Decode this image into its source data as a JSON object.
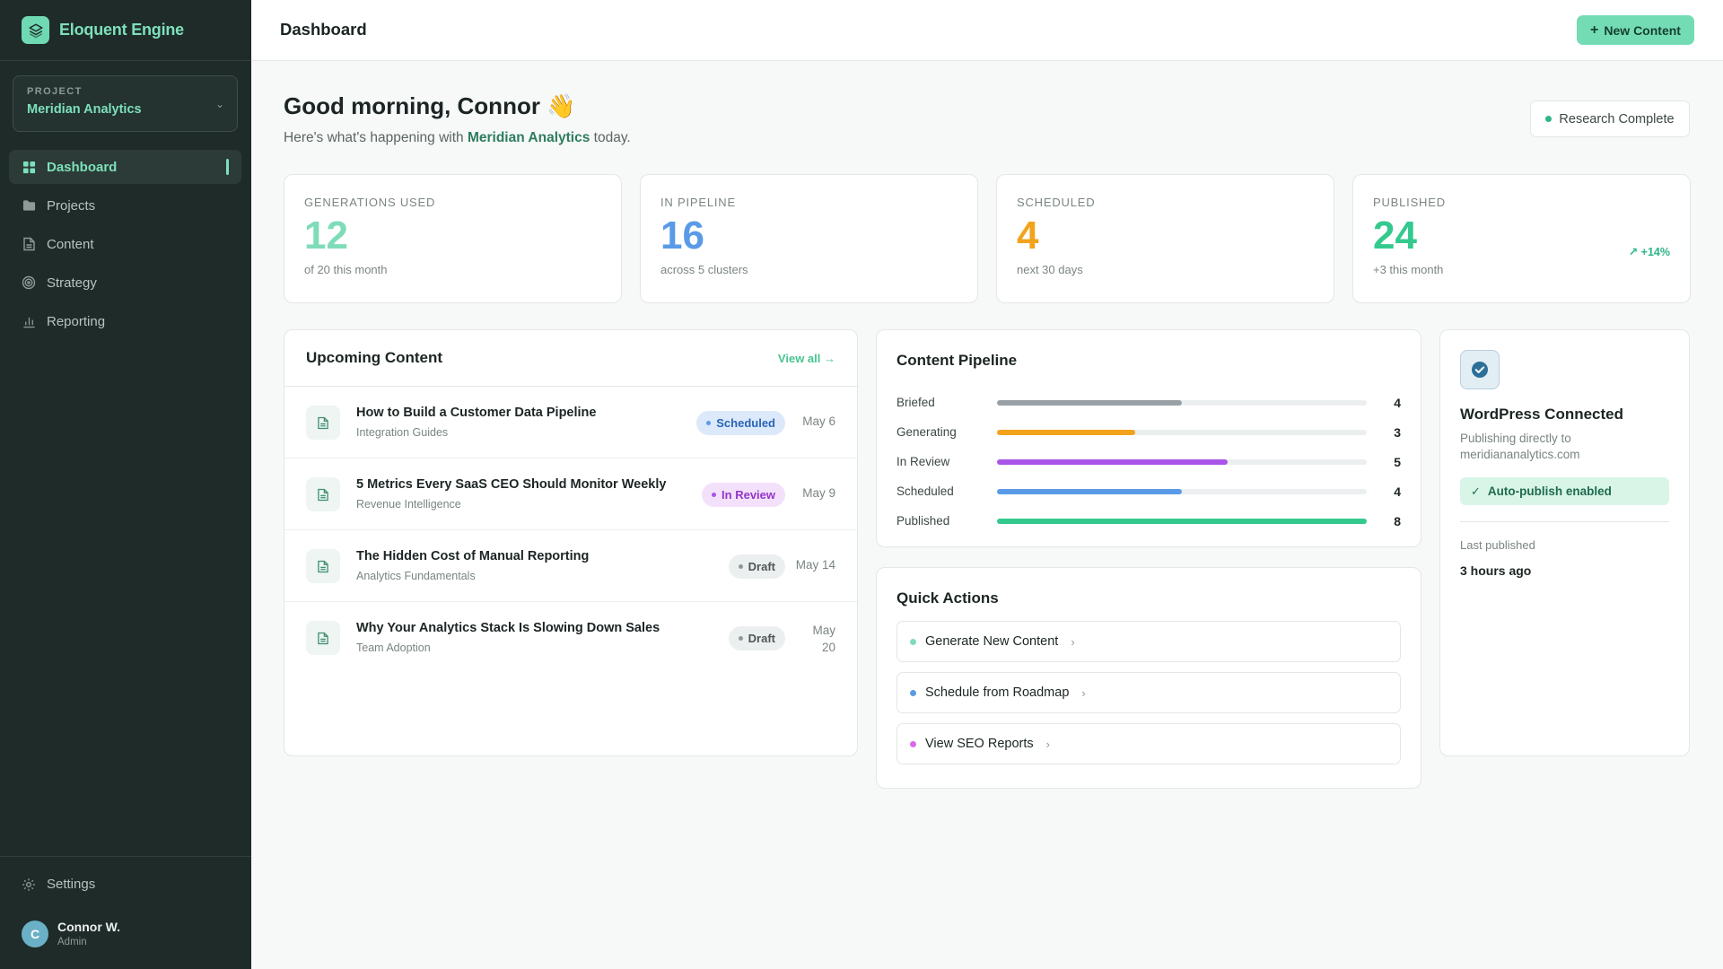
{
  "app": {
    "name": "Eloquent Engine"
  },
  "project": {
    "label": "PROJECT",
    "name": "Meridian Analytics"
  },
  "nav": {
    "items": [
      {
        "label": "Dashboard",
        "icon": "grid-icon",
        "active": true
      },
      {
        "label": "Projects",
        "icon": "folder-icon"
      },
      {
        "label": "Content",
        "icon": "document-icon"
      },
      {
        "label": "Strategy",
        "icon": "target-icon"
      },
      {
        "label": "Reporting",
        "icon": "bar-chart-icon"
      }
    ],
    "settings_label": "Settings"
  },
  "user": {
    "name": "Connor W.",
    "role": "Admin",
    "initial": "C"
  },
  "topbar": {
    "title": "Dashboard",
    "new_button": "New Content"
  },
  "greeting": {
    "title": "Good morning, Connor 👋",
    "sub_prefix": "Here's what's happening with ",
    "sub_project": "Meridian Analytics",
    "sub_suffix": " today."
  },
  "research_status": {
    "label": "Research Complete",
    "color": "#2fb687"
  },
  "stats": [
    {
      "label": "GENERATIONS USED",
      "value": "12",
      "sub": "of 20 this month",
      "color": "#7fdcb8"
    },
    {
      "label": "IN PIPELINE",
      "value": "16",
      "sub": "across 5 clusters",
      "color": "#5a9be8"
    },
    {
      "label": "SCHEDULED",
      "value": "4",
      "sub": "next 30 days",
      "color": "#f2a31b"
    },
    {
      "label": "PUBLISHED",
      "value": "24",
      "sub": "+3 this month",
      "color": "#34c98e",
      "trend": "↗ +14%"
    }
  ],
  "upcoming": {
    "title": "Upcoming Content",
    "view_all": "View all →",
    "items": [
      {
        "title": "How to Build a Customer Data Pipeline",
        "category": "Integration Guides",
        "status": "Scheduled",
        "date": "May 6"
      },
      {
        "title": "5 Metrics Every SaaS CEO Should Monitor Weekly",
        "category": "Revenue Intelligence",
        "status": "In Review",
        "date": "May 9"
      },
      {
        "title": "The Hidden Cost of Manual Reporting",
        "category": "Analytics Fundamentals",
        "status": "Draft",
        "date": "May 14"
      },
      {
        "title": "Why Your Analytics Stack Is Slowing Down Sales",
        "category": "Team Adoption",
        "status": "Draft",
        "date": "May 20"
      }
    ]
  },
  "pipeline": {
    "title": "Content Pipeline",
    "max": 8,
    "rows": [
      {
        "label": "Briefed",
        "value": 4,
        "color": "#9aa1a6"
      },
      {
        "label": "Generating",
        "value": 3,
        "color": "#f2a31b"
      },
      {
        "label": "In Review",
        "value": 5,
        "color": "#a855e8"
      },
      {
        "label": "Scheduled",
        "value": 4,
        "color": "#5a9be8"
      },
      {
        "label": "Published",
        "value": 8,
        "color": "#34c98e"
      }
    ]
  },
  "quick_actions": {
    "title": "Quick Actions",
    "items": [
      {
        "label": "Generate New Content",
        "color": "#7fdcb8"
      },
      {
        "label": "Schedule from Roadmap",
        "color": "#5a9be8"
      },
      {
        "label": "View SEO Reports",
        "color": "#d96be6"
      }
    ]
  },
  "wordpress": {
    "title": "WordPress Connected",
    "desc": "Publishing directly to meridiananalytics.com",
    "auto_publish": "Auto-publish enabled",
    "last_label": "Last published",
    "last_value": "3 hours ago"
  }
}
